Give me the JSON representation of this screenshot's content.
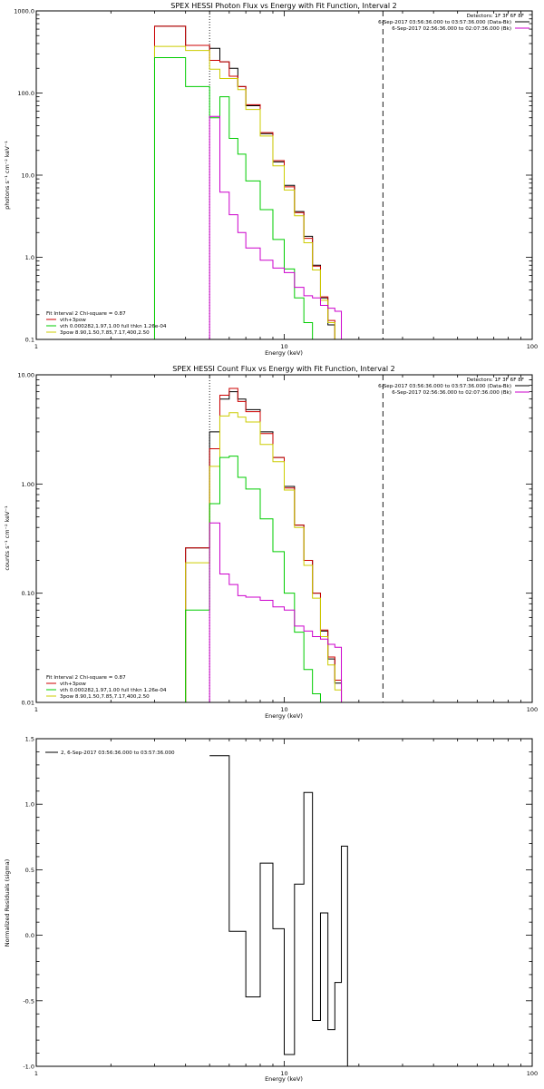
{
  "chart_data": [
    {
      "type": "line",
      "title": "SPEX HESSI Photon Flux vs Energy with Fit Function, Interval 2",
      "xlabel": "Energy (keV)",
      "ylabel": "photons s⁻¹ cm⁻² keV⁻¹",
      "xscale": "log",
      "yscale": "log",
      "xlim": [
        1,
        100
      ],
      "ylim": [
        0.1,
        1000
      ],
      "x_tick_labels": [
        "1",
        "10",
        "100"
      ],
      "y_tick_labels": [
        "0.1",
        "1.0",
        "10.0",
        "100.0",
        "1000.0"
      ],
      "edges": [
        3.0,
        4.0,
        5.0,
        5.5,
        6.0,
        6.5,
        7.0,
        8.0,
        9.0,
        10.0,
        11.0,
        12.0,
        13.0,
        14.0,
        15.0,
        16.0,
        17.0,
        18.0,
        20.0
      ],
      "vlines": [
        {
          "x": 5.0,
          "style": "dotted",
          "color": "#000000"
        },
        {
          "x": 25.0,
          "style": "dashed",
          "color": "#000000"
        }
      ],
      "upper_legend": {
        "placement": "top-right",
        "header": "Detectors: 1F 3F 6F 8F",
        "lines": [
          {
            "text": "6-Sep-2017 03:56:36.000 to 03:57:36.000 (Data-Bk)",
            "color": "#000000"
          },
          {
            "text": "6-Sep-2017 02:56:36.000 to 02:07:36.000 (Bk)",
            "color": "#cc00cc"
          }
        ]
      },
      "lower_legend": {
        "placement": "bottom-left",
        "header": "Fit Interval 2  Chi-square = 0.87",
        "lines": [
          {
            "text": "vth+3pow",
            "color": "#cc0000"
          },
          {
            "text": "vth 0.000282,1.97,1.00  full thkn 1.26e-04",
            "color": "#00cc00"
          },
          {
            "text": "3pow 8.90,1.50,7.85,7.17,400,2.50",
            "color": "#cccc00"
          }
        ]
      },
      "series": [
        {
          "color": "#000000",
          "values": [
            650,
            380,
            350,
            240,
            200,
            120,
            70,
            32,
            14.5,
            7.5,
            3.6,
            1.8,
            0.8,
            0.32,
            0.15,
            0.1,
            0.1,
            0.1
          ]
        },
        {
          "color": "#cc0000",
          "values": [
            650,
            380,
            250,
            240,
            160,
            120,
            72,
            33,
            15,
            7.2,
            3.5,
            1.7,
            0.78,
            0.33,
            0.17,
            0.1,
            0.1,
            0.1
          ]
        },
        {
          "color": "#cccc00",
          "values": [
            370,
            330,
            195,
            150,
            150,
            110,
            63,
            30,
            13,
            6.6,
            3.2,
            1.5,
            0.7,
            0.3,
            0.16,
            0.1,
            0.1,
            0.1
          ]
        },
        {
          "color": "#00cc00",
          "values": [
            270,
            120,
            50,
            90,
            28,
            18,
            8.5,
            3.8,
            1.65,
            0.72,
            0.32,
            0.16,
            0.1,
            0.1,
            0.1,
            0.1,
            0.1,
            0.1
          ]
        },
        {
          "color": "#cc00cc",
          "values": [
            null,
            null,
            52,
            6.2,
            3.3,
            2.0,
            1.3,
            0.92,
            0.74,
            0.65,
            0.43,
            0.34,
            0.32,
            0.26,
            0.24,
            0.22,
            0.1,
            0.1
          ]
        }
      ]
    },
    {
      "type": "line",
      "title": "SPEX HESSI Count Flux vs Energy with Fit Function, Interval 2",
      "xlabel": "Energy (keV)",
      "ylabel": "counts s⁻¹ cm⁻² keV⁻¹",
      "xscale": "log",
      "yscale": "log",
      "xlim": [
        1,
        100
      ],
      "ylim": [
        0.01,
        10
      ],
      "x_tick_labels": [
        "1",
        "10",
        "100"
      ],
      "y_tick_labels": [
        "0.01",
        "0.10",
        "1.00",
        "10.00"
      ],
      "edges": [
        3.0,
        4.0,
        5.0,
        5.5,
        6.0,
        6.5,
        7.0,
        8.0,
        9.0,
        10.0,
        11.0,
        12.0,
        13.0,
        14.0,
        15.0,
        16.0,
        17.0,
        18.0,
        20.0
      ],
      "vlines": [
        {
          "x": 5.0,
          "style": "dotted",
          "color": "#000000"
        },
        {
          "x": 25.0,
          "style": "dashed",
          "color": "#000000"
        }
      ],
      "upper_legend": {
        "placement": "top-right",
        "header": "Detectors: 1F 3F 6F 8F",
        "lines": [
          {
            "text": "6-Sep-2017 03:56:36.000 to 03:57:36.000 (Data-Bk)",
            "color": "#000000"
          },
          {
            "text": "6-Sep-2017 02:56:36.000 to 02:07:36.000 (Bk)",
            "color": "#cc00cc"
          }
        ]
      },
      "lower_legend": {
        "placement": "bottom-left",
        "header": "Fit Interval 2  Chi-square = 0.87",
        "lines": [
          {
            "text": "vth+3pow",
            "color": "#cc0000"
          },
          {
            "text": "vth 0.000282,1.97,1.00  full thkn 1.26e-04",
            "color": "#00cc00"
          },
          {
            "text": "3pow 8.90,1.50,7.85,7.17,400,2.50",
            "color": "#cccc00"
          }
        ]
      },
      "series": [
        {
          "color": "#000000",
          "values": [
            0.01,
            0.26,
            3.0,
            6.0,
            7.0,
            6.0,
            4.8,
            3.0,
            1.75,
            0.95,
            0.42,
            0.2,
            0.1,
            0.045,
            0.025,
            0.015,
            0.01,
            0.01
          ]
        },
        {
          "color": "#cc0000",
          "values": [
            0.01,
            0.26,
            2.1,
            6.5,
            7.5,
            5.7,
            4.6,
            2.9,
            1.75,
            0.92,
            0.42,
            0.2,
            0.1,
            0.046,
            0.026,
            0.016,
            0.01,
            0.01
          ]
        },
        {
          "color": "#cccc00",
          "values": [
            0.01,
            0.19,
            1.45,
            4.2,
            4.5,
            4.1,
            3.7,
            2.3,
            1.6,
            0.88,
            0.4,
            0.18,
            0.09,
            0.04,
            0.022,
            0.013,
            0.01,
            0.01
          ]
        },
        {
          "color": "#00cc00",
          "values": [
            0.01,
            0.07,
            0.66,
            1.75,
            1.8,
            1.15,
            0.9,
            0.48,
            0.24,
            0.1,
            0.044,
            0.02,
            0.012,
            0.01,
            0.01,
            0.01,
            0.01,
            0.01
          ]
        },
        {
          "color": "#cc00cc",
          "values": [
            null,
            null,
            0.44,
            0.15,
            0.12,
            0.095,
            0.092,
            0.086,
            0.075,
            0.07,
            0.05,
            0.045,
            0.04,
            0.038,
            0.034,
            0.032,
            0.01,
            0.01
          ]
        }
      ]
    },
    {
      "type": "line",
      "title": "",
      "xlabel": "Energy (keV)",
      "ylabel": "Normalized Residuals (sigma)",
      "xscale": "log",
      "yscale": "linear",
      "xlim": [
        1,
        100
      ],
      "ylim": [
        -1.0,
        1.5
      ],
      "x_tick_labels": [
        "1",
        "10",
        "100"
      ],
      "y_tick_labels": [
        "-1.0",
        "-0.5",
        "0.0",
        "0.5",
        "1.0",
        "1.5"
      ],
      "edges": [
        5.0,
        6.0,
        7.0,
        8.0,
        9.0,
        10.0,
        11.0,
        12.0,
        13.0,
        14.0,
        15.0,
        16.0,
        17.0,
        18.0,
        20.0
      ],
      "legend": {
        "placement": "top-left",
        "text": "2,  6-Sep-2017 03:56:36.000 to 03:57:36.000",
        "color": "#000000"
      },
      "series": [
        {
          "color": "#000000",
          "values": [
            1.37,
            0.03,
            -0.47,
            0.55,
            0.05,
            -0.91,
            0.39,
            1.09,
            -0.65,
            0.17,
            -0.72,
            -0.36,
            0.68,
            -1.0
          ]
        }
      ]
    }
  ]
}
